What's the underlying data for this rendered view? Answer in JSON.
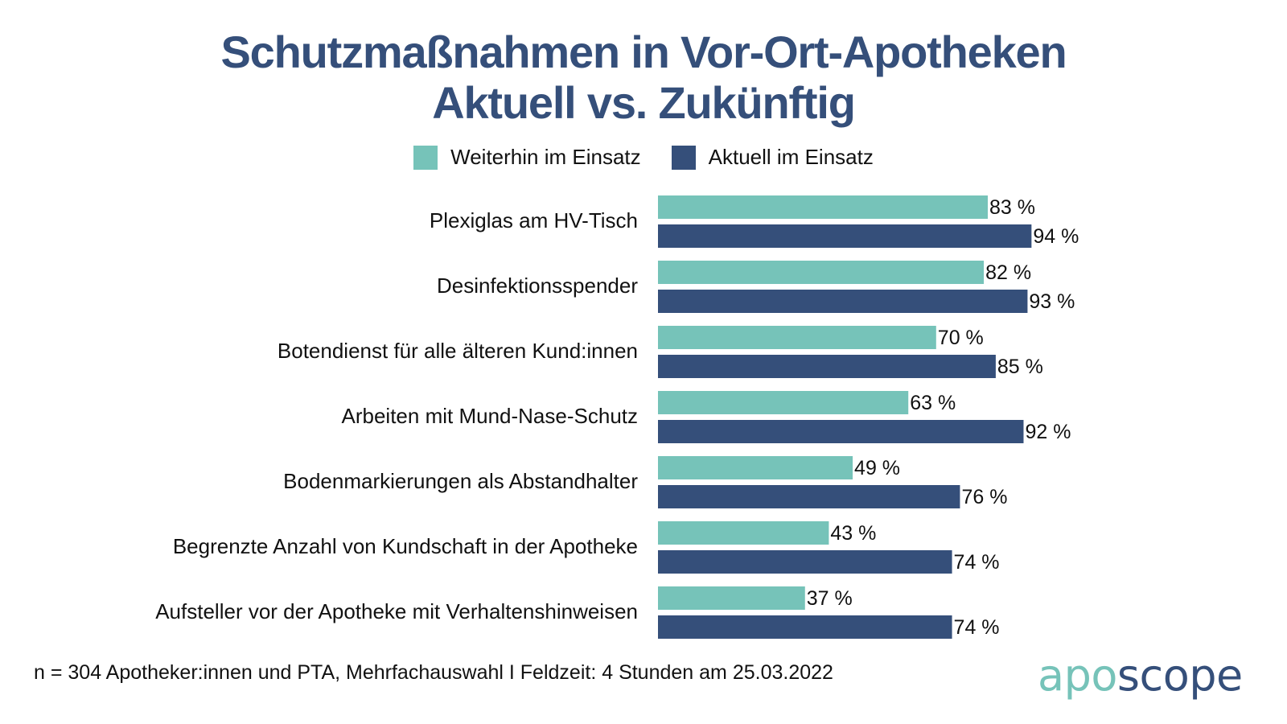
{
  "chart_data": {
    "type": "bar",
    "orientation": "horizontal",
    "title": "Schutzmaßnahmen in Vor-Ort-Apotheken",
    "subtitle": "Aktuell vs. Zukünftig",
    "xlabel": "",
    "ylabel": "",
    "xlim": [
      0,
      100
    ],
    "grid": false,
    "legend_position": "top-center",
    "value_suffix": " %",
    "categories": [
      "Plexiglas am HV-Tisch",
      "Desinfektionsspender",
      "Botendienst für alle älteren Kund:innen",
      "Arbeiten mit Mund-Nase-Schutz",
      "Bodenmarkierungen als Abstandhalter",
      "Begrenzte Anzahl von Kundschaft in der Apotheke",
      "Aufsteller vor der Apotheke mit Verhaltenshinweisen"
    ],
    "series": [
      {
        "name": "Weiterhin im Einsatz",
        "color": "#76c3b9",
        "values": [
          83,
          82,
          70,
          63,
          49,
          43,
          37
        ]
      },
      {
        "name": "Aktuell im Einsatz",
        "color": "#354f7a",
        "values": [
          94,
          93,
          85,
          92,
          76,
          74,
          74
        ]
      }
    ]
  },
  "header": {
    "title_line1": "Schutzmaßnahmen in Vor-Ort-Apotheken",
    "title_line2": "Aktuell vs. Zukünftig"
  },
  "legend": {
    "items": [
      {
        "label": "Weiterhin im Einsatz",
        "color": "#76c3b9"
      },
      {
        "label": "Aktuell im Einsatz",
        "color": "#354f7a"
      }
    ]
  },
  "footer": {
    "note": "n = 304 Apotheker:innen und PTA, Mehrfachauswahl I Feldzeit: 4 Stunden am 25.03.2022",
    "logo_part1": "apo",
    "logo_part2": "scope"
  }
}
